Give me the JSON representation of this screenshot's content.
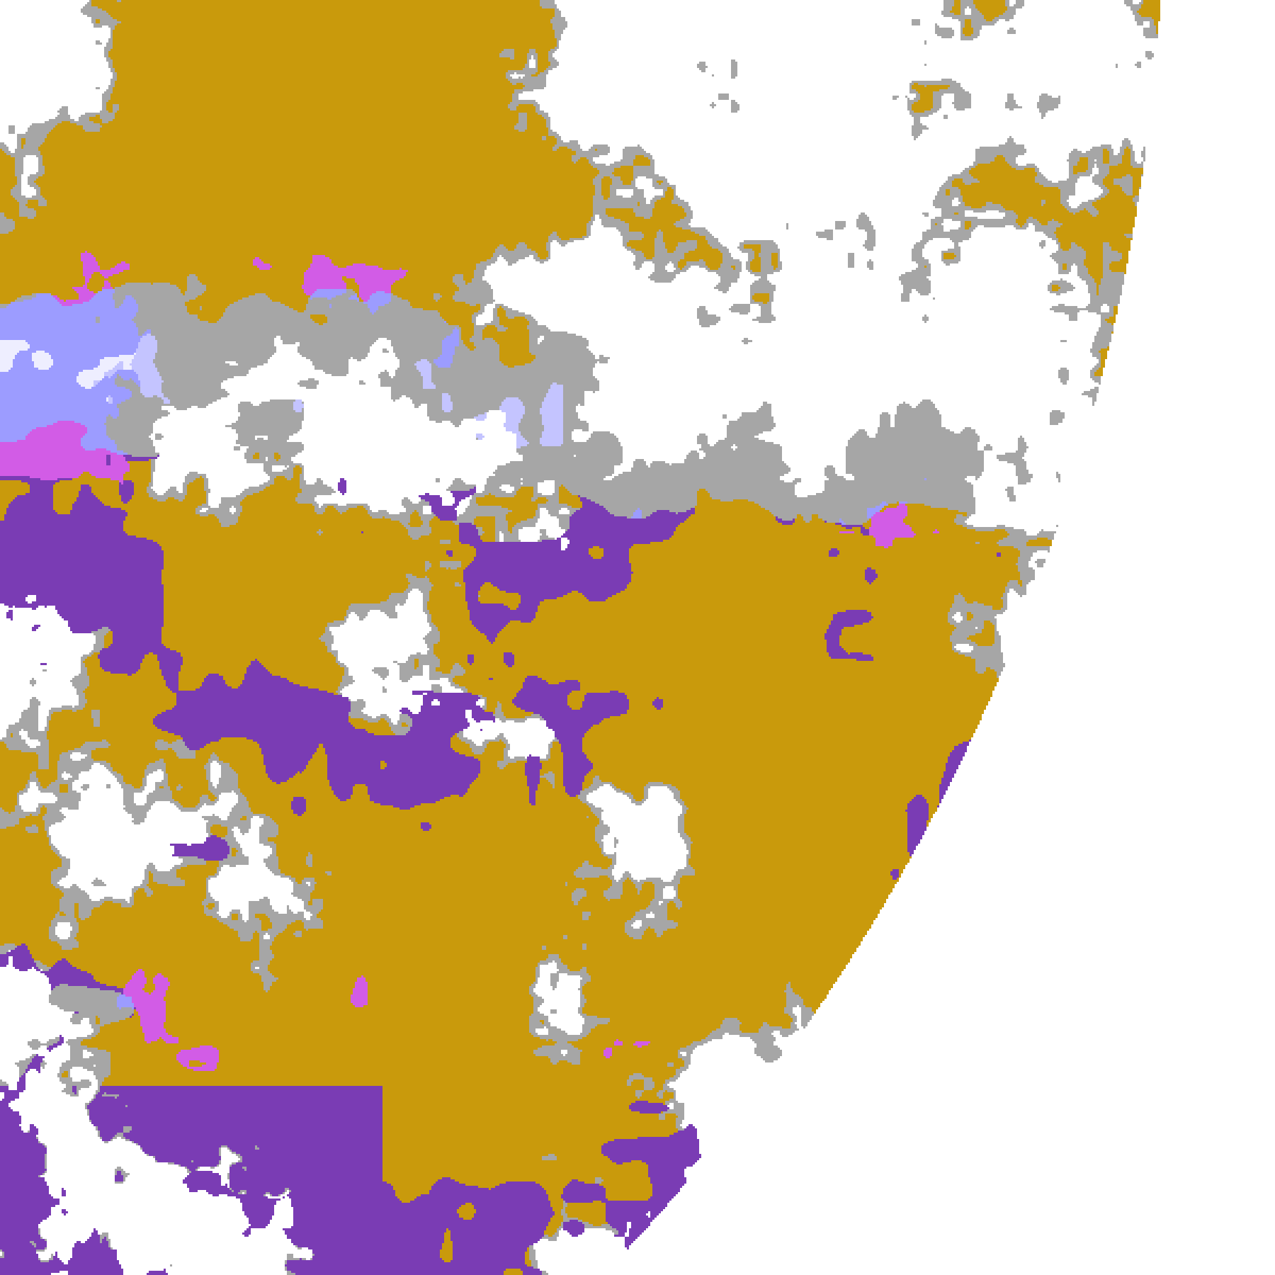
{
  "map": {
    "background": "#ffffff",
    "classes": [
      {
        "color": "#ffffff"
      },
      {
        "color": "#c99a0c"
      },
      {
        "color": "#7a3cb4"
      },
      {
        "color": "#a6a6a6"
      },
      {
        "color": "#9c9cff"
      },
      {
        "color": "#c4c4ff"
      },
      {
        "color": "#eeeeff"
      },
      {
        "color": "#d25ce6"
      }
    ],
    "disk_edge_visible": true
  }
}
